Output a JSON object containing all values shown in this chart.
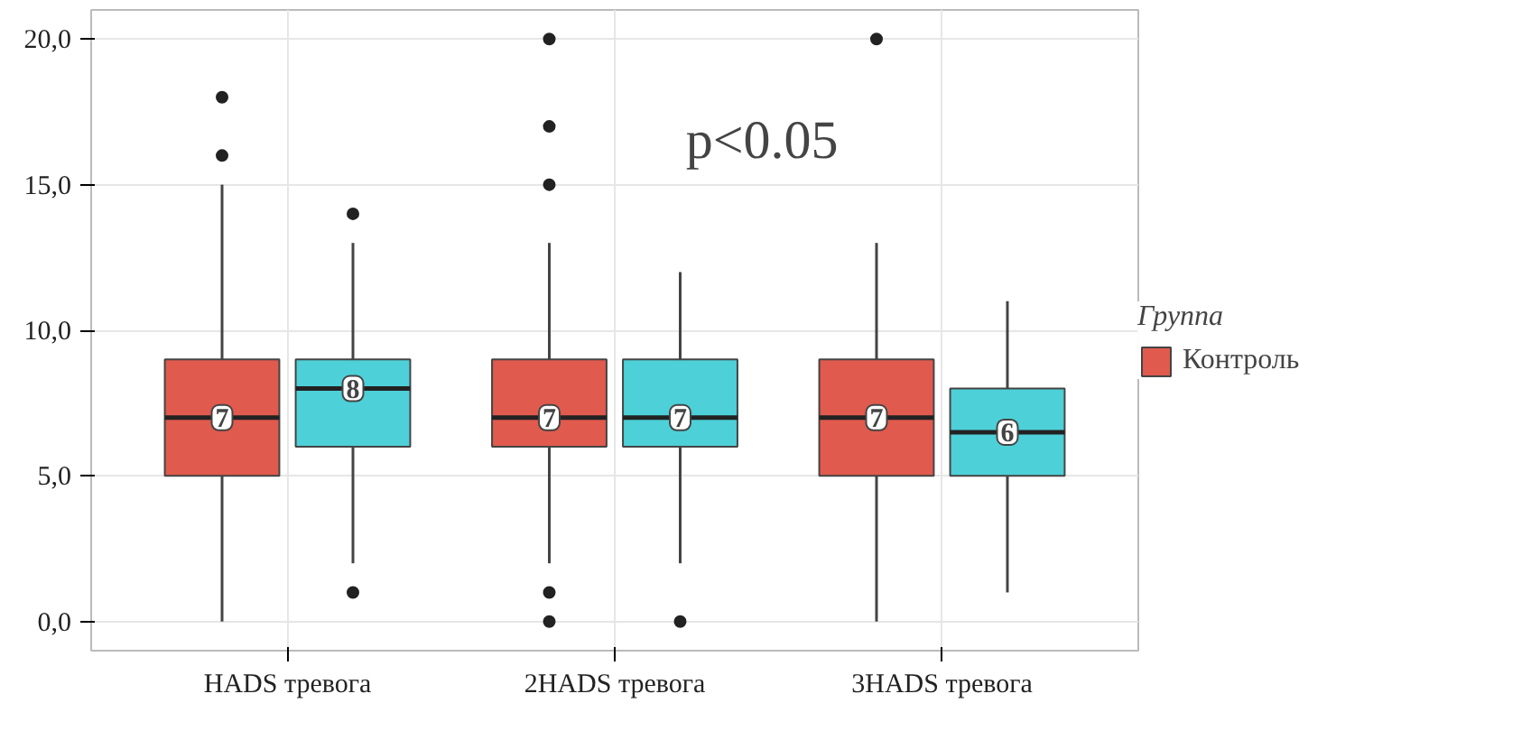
{
  "chart_data": {
    "type": "box",
    "categories": [
      "HADS тревога",
      "2HADS тревога",
      "3HADS тревога"
    ],
    "ylim": [
      -1,
      21
    ],
    "yticks": [
      {
        "value": 0,
        "label": "0,0"
      },
      {
        "value": 5,
        "label": "5,0"
      },
      {
        "value": 10,
        "label": "10,0"
      },
      {
        "value": 15,
        "label": "15,0"
      },
      {
        "value": 20,
        "label": "20,0"
      }
    ],
    "grid": true,
    "legend": "right",
    "legend_title": "Группа",
    "annotations": [
      "p<0.05"
    ],
    "series": [
      {
        "name": "Контроль",
        "color": "#e05a4e",
        "value_labels": [
          "7",
          "7",
          "7"
        ],
        "boxes": [
          {
            "low": 0,
            "q1": 5,
            "median": 7,
            "q3": 9,
            "high": 15,
            "outliers": [
              16,
              18
            ]
          },
          {
            "low": 2,
            "q1": 6,
            "median": 7,
            "q3": 9,
            "high": 13,
            "outliers": [
              0,
              1,
              15,
              17,
              20
            ]
          },
          {
            "low": 0,
            "q1": 5,
            "median": 7,
            "q3": 9,
            "high": 13,
            "outliers": [
              20
            ]
          }
        ]
      },
      {
        "color": "#4dd0d8",
        "value_labels": [
          "8",
          "7",
          "6"
        ],
        "boxes": [
          {
            "low": 2,
            "q1": 6,
            "median": 8,
            "q3": 9,
            "high": 13,
            "outliers": [
              1,
              14
            ]
          },
          {
            "low": 2,
            "q1": 6,
            "median": 7,
            "q3": 9,
            "high": 12,
            "outliers": [
              0
            ]
          },
          {
            "low": 1,
            "q1": 5,
            "median": 6.5,
            "q3": 8,
            "high": 11
          }
        ]
      }
    ]
  }
}
